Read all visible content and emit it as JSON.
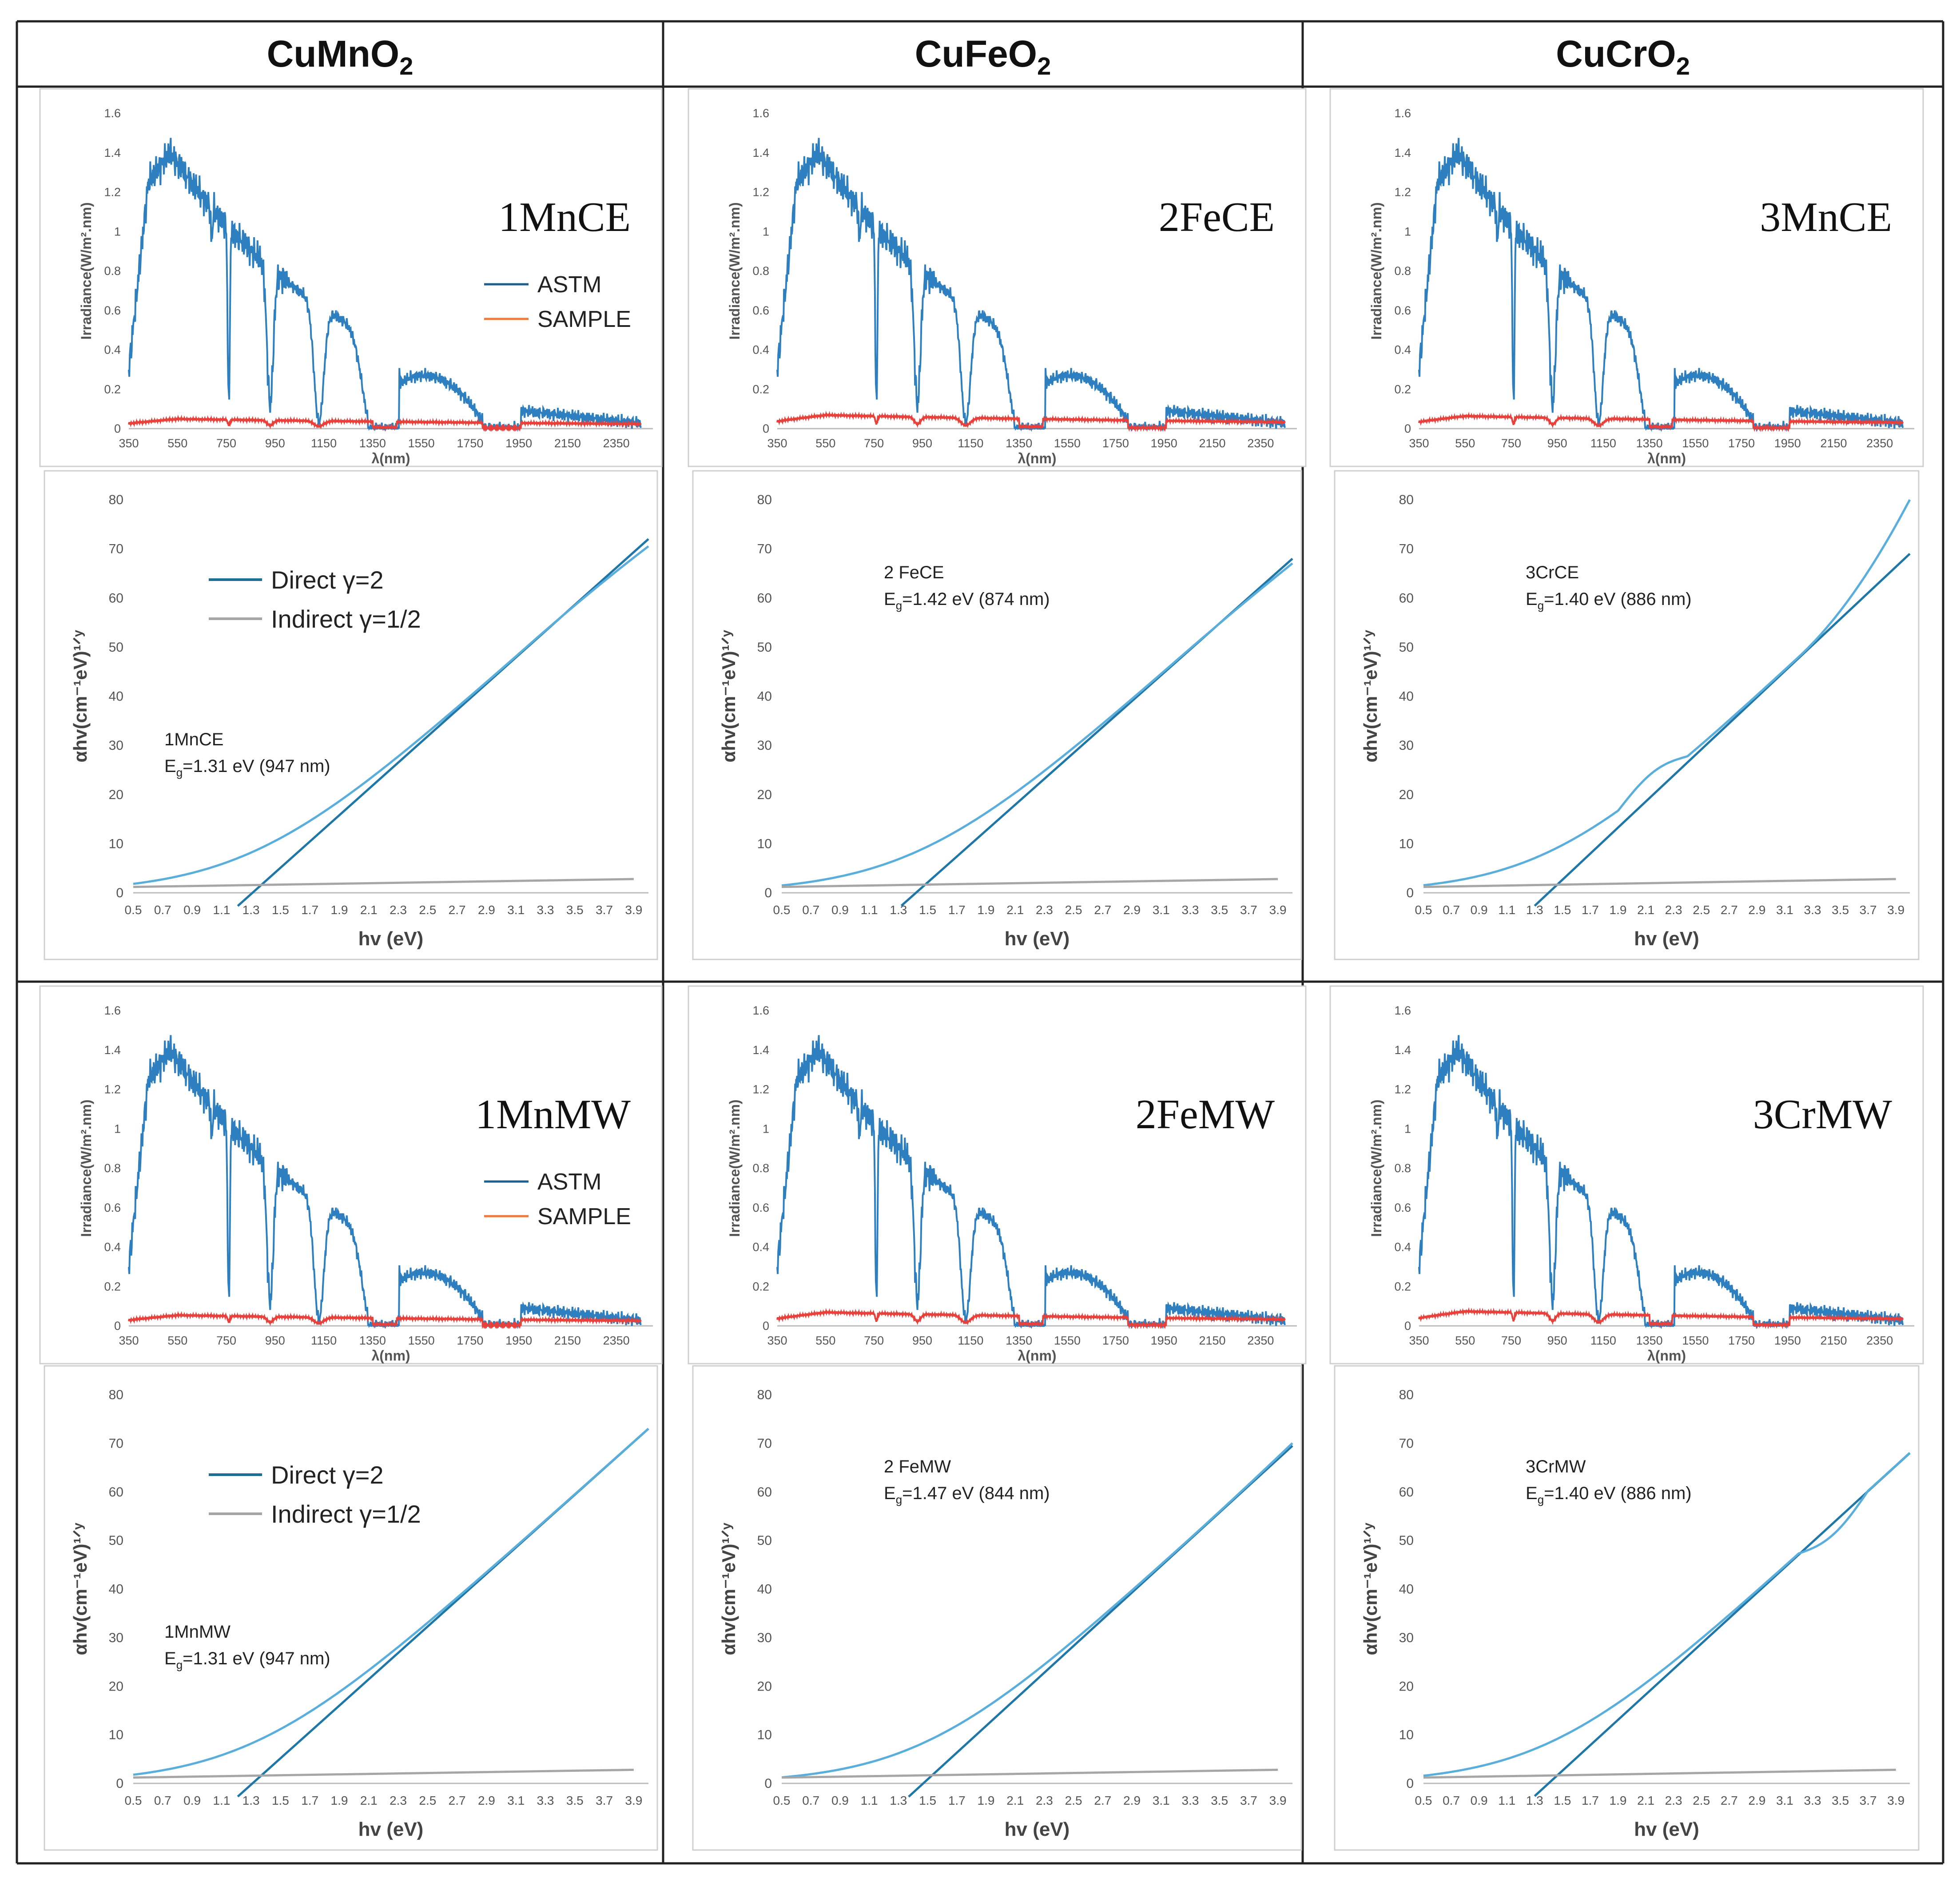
{
  "columns": [
    {
      "formula": "CuMnO",
      "sub": "2"
    },
    {
      "formula": "CuFeO",
      "sub": "2"
    },
    {
      "formula": "CuCrO",
      "sub": "2"
    }
  ],
  "irradiance_axis": {
    "ylabel": "Irradiance(W/m².nm)",
    "xlabel": "λ(nm)",
    "xticks": [
      "350",
      "550",
      "750",
      "950",
      "1150",
      "1350",
      "1550",
      "1750",
      "1950",
      "2150",
      "2350"
    ],
    "yticks": [
      "0",
      "0.2",
      "0.4",
      "0.6",
      "0.8",
      "1",
      "1.2",
      "1.4",
      "1.6"
    ]
  },
  "tauc_axis": {
    "ylabel": "αhv(cm⁻¹eV)¹ᐟʸ",
    "xlabel": "hv (eV)",
    "xticks": [
      "0.5",
      "0.7",
      "0.9",
      "1.1",
      "1.3",
      "1.5",
      "1.7",
      "1.9",
      "2.1",
      "2.3",
      "2.5",
      "2.7",
      "2.9",
      "3.1",
      "3.3",
      "3.5",
      "3.7",
      "3.9"
    ],
    "yticks": [
      "0",
      "10",
      "20",
      "30",
      "40",
      "50",
      "60",
      "70",
      "80"
    ]
  },
  "legends": {
    "irradiance": [
      "ASTM",
      "SAMPLE"
    ],
    "tauc": [
      "Direct γ=2",
      "Indirect γ=1/2"
    ]
  },
  "colors": {
    "astm": "#2e7fc0",
    "sample": "#e8403a",
    "direct": "#1f77a8",
    "fit": "#5aaedc",
    "indirect": "#a6a6a6",
    "border": "#222222"
  },
  "chart_data": [
    {
      "type": "line",
      "panel": "irradiance",
      "title": "1MnCE",
      "xlim": [
        350,
        2500
      ],
      "ylim": [
        0,
        1.6
      ],
      "sample_scale": 0.05,
      "legend": true
    },
    {
      "type": "line",
      "panel": "irradiance",
      "title": "2FeCE",
      "xlim": [
        350,
        2500
      ],
      "ylim": [
        0,
        1.6
      ],
      "sample_scale": 0.07,
      "legend": false
    },
    {
      "type": "line",
      "panel": "irradiance",
      "title": "3MnCE",
      "xlim": [
        350,
        2500
      ],
      "ylim": [
        0,
        1.6
      ],
      "sample_scale": 0.065,
      "legend": false
    },
    {
      "type": "line",
      "panel": "tauc",
      "sample": "1MnCE",
      "eg_label": "E",
      "eg_sub": "g",
      "eg_text": "=1.31 eV (947 nm)",
      "eg": 1.31,
      "fit_end": [
        4.0,
        72
      ],
      "curve_end": 70.5,
      "xlim": [
        0.5,
        4.0
      ],
      "ylim": [
        0,
        80
      ],
      "legend": true,
      "bump": 0
    },
    {
      "type": "line",
      "panel": "tauc",
      "sample": "2 FeCE",
      "eg_label": "E",
      "eg_sub": "g",
      "eg_text": "=1.42 eV (874 nm)",
      "eg": 1.42,
      "fit_end": [
        4.0,
        68
      ],
      "curve_end": 67,
      "xlim": [
        0.5,
        4.0
      ],
      "ylim": [
        0,
        80
      ],
      "legend": false,
      "bump": 0
    },
    {
      "type": "line",
      "panel": "tauc",
      "sample": "3CrCE",
      "eg_label": "E",
      "eg_sub": "g",
      "eg_text": "=1.40 eV (886 nm)",
      "eg": 1.4,
      "fit_end": [
        4.0,
        69
      ],
      "curve_end": 80,
      "xlim": [
        0.5,
        4.0
      ],
      "ylim": [
        0,
        80
      ],
      "legend": false,
      "bump": 1
    },
    {
      "type": "line",
      "panel": "irradiance",
      "title": "1MnMW",
      "xlim": [
        350,
        2500
      ],
      "ylim": [
        0,
        1.6
      ],
      "sample_scale": 0.055,
      "legend": true
    },
    {
      "type": "line",
      "panel": "irradiance",
      "title": "2FeMW",
      "xlim": [
        350,
        2500
      ],
      "ylim": [
        0,
        1.6
      ],
      "sample_scale": 0.07,
      "legend": false
    },
    {
      "type": "line",
      "panel": "irradiance",
      "title": "3CrMW",
      "xlim": [
        350,
        2500
      ],
      "ylim": [
        0,
        1.6
      ],
      "sample_scale": 0.075,
      "legend": false
    },
    {
      "type": "line",
      "panel": "tauc",
      "sample": "1MnMW",
      "eg_label": "E",
      "eg_sub": "g",
      "eg_text": "=1.31 eV (947 nm)",
      "eg": 1.31,
      "fit_end": [
        4.0,
        73
      ],
      "curve_end": 73,
      "xlim": [
        0.5,
        4.0
      ],
      "ylim": [
        0,
        80
      ],
      "legend": true,
      "bump": 0
    },
    {
      "type": "line",
      "panel": "tauc",
      "sample": "2 FeMW",
      "eg_label": "E",
      "eg_sub": "g",
      "eg_text": "=1.47 eV (844 nm)",
      "eg": 1.47,
      "fit_end": [
        4.0,
        69.5
      ],
      "curve_end": 70,
      "xlim": [
        0.5,
        4.0
      ],
      "ylim": [
        0,
        80
      ],
      "legend": false,
      "bump": 0
    },
    {
      "type": "line",
      "panel": "tauc",
      "sample": "3CrMW",
      "eg_label": "E",
      "eg_sub": "g",
      "eg_text": "=1.40 eV (886 nm)",
      "eg": 1.4,
      "fit_end": [
        4.0,
        68
      ],
      "curve_end": 68,
      "xlim": [
        0.5,
        4.0
      ],
      "ylim": [
        0,
        80
      ],
      "legend": false,
      "bump": -1
    }
  ]
}
